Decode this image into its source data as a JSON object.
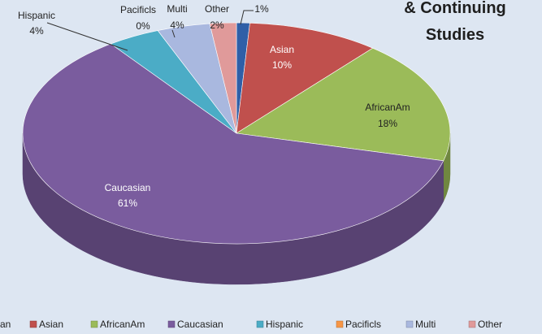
{
  "chart_data": {
    "type": "pie3d",
    "title": "& Continuing Studies",
    "categories": [
      "an",
      "Asian",
      "AfricanAm",
      "Caucasian",
      "Hispanic",
      "Pacificls",
      "Multi",
      "Other"
    ],
    "values": [
      1,
      10,
      18,
      61,
      4,
      0,
      4,
      2
    ],
    "value_labels": [
      "1%",
      "10%",
      "18%",
      "61%",
      "4%",
      "0%",
      "4%",
      "2%"
    ],
    "colors": [
      "#2f5fa7",
      "#c0504d",
      "#9bbb59",
      "#7a5c9e",
      "#4bacc6",
      "#f79646",
      "#a9b8df",
      "#e09a9a"
    ],
    "legend": "bottom"
  }
}
